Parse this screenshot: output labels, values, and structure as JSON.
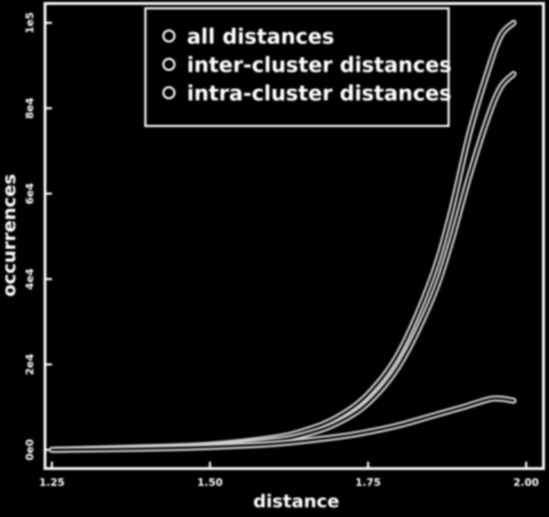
{
  "colors": {
    "background": "#000000",
    "foreground": "#ffffff",
    "line": "#cfcfcf"
  },
  "chart_data": {
    "type": "line",
    "xlabel": "distance",
    "ylabel": "occurrences",
    "xlim": [
      1.25,
      2.0
    ],
    "ylim": [
      0,
      1.0
    ],
    "y_scale_label": "1e5",
    "x_ticks": [
      {
        "value": 1.25,
        "label": "1.25"
      },
      {
        "value": 1.5,
        "label": "1.50"
      },
      {
        "value": 1.75,
        "label": "1.75"
      },
      {
        "value": 2.0,
        "label": "2.00"
      }
    ],
    "y_ticks": [
      {
        "value": 0,
        "label": "0e0"
      },
      {
        "value": 0.2,
        "label": "2e4"
      },
      {
        "value": 0.4,
        "label": "4e4"
      },
      {
        "value": 0.6,
        "label": "6e4"
      },
      {
        "value": 0.8,
        "label": "8e4"
      },
      {
        "value": 1.0,
        "label": "1e5"
      }
    ],
    "legend_position": "top-center",
    "grid": false,
    "series": [
      {
        "name": "all distances",
        "x": [
          1.25,
          1.4,
          1.5,
          1.6,
          1.65,
          1.7,
          1.75,
          1.8,
          1.85,
          1.88,
          1.91,
          1.94,
          1.96,
          1.98
        ],
        "y": [
          0.0,
          0.006,
          0.012,
          0.028,
          0.045,
          0.075,
          0.13,
          0.23,
          0.4,
          0.55,
          0.74,
          0.89,
          0.97,
          1.0
        ]
      },
      {
        "name": "inter-cluster distances",
        "x": [
          1.25,
          1.4,
          1.5,
          1.6,
          1.65,
          1.7,
          1.75,
          1.8,
          1.85,
          1.88,
          1.91,
          1.94,
          1.96,
          1.98
        ],
        "y": [
          0.0,
          0.005,
          0.01,
          0.022,
          0.036,
          0.062,
          0.11,
          0.2,
          0.35,
          0.48,
          0.64,
          0.78,
          0.85,
          0.88
        ]
      },
      {
        "name": "intra-cluster distances",
        "x": [
          1.25,
          1.4,
          1.5,
          1.6,
          1.7,
          1.75,
          1.8,
          1.85,
          1.9,
          1.94,
          1.96,
          1.98
        ],
        "y": [
          0.0,
          0.003,
          0.007,
          0.014,
          0.03,
          0.042,
          0.058,
          0.079,
          0.1,
          0.118,
          0.12,
          0.115
        ]
      }
    ]
  }
}
